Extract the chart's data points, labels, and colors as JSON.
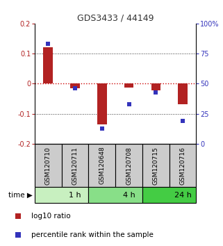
{
  "title": "GDS3433 / 44149",
  "samples": [
    "GSM120710",
    "GSM120711",
    "GSM120648",
    "GSM120708",
    "GSM120715",
    "GSM120716"
  ],
  "log10_ratio": [
    0.12,
    -0.015,
    -0.135,
    -0.012,
    -0.022,
    -0.068
  ],
  "percentile_rank": [
    83,
    46,
    13,
    33,
    43,
    19
  ],
  "time_groups": [
    {
      "label": "1 h",
      "start": 0,
      "end": 2,
      "color": "#c8f0c0"
    },
    {
      "label": "4 h",
      "start": 2,
      "end": 4,
      "color": "#88df88"
    },
    {
      "label": "24 h",
      "start": 4,
      "end": 6,
      "color": "#44cc44"
    }
  ],
  "bar_color": "#b22222",
  "dot_color": "#3333bb",
  "zero_line_color": "#cc0000",
  "grid_color": "#333333",
  "ylim_left": [
    -0.2,
    0.2
  ],
  "ylim_right": [
    0,
    100
  ],
  "yticks_left": [
    -0.2,
    -0.1,
    0.0,
    0.1,
    0.2
  ],
  "yticks_right": [
    0,
    25,
    50,
    75,
    100
  ],
  "ytick_labels_right": [
    "0",
    "25",
    "50",
    "75",
    "100%"
  ],
  "legend_items": [
    "log10 ratio",
    "percentile rank within the sample"
  ],
  "sample_box_color": "#cccccc",
  "time_label": "time",
  "bar_width": 0.35,
  "bg_color": "#ffffff",
  "title_color": "#333333"
}
